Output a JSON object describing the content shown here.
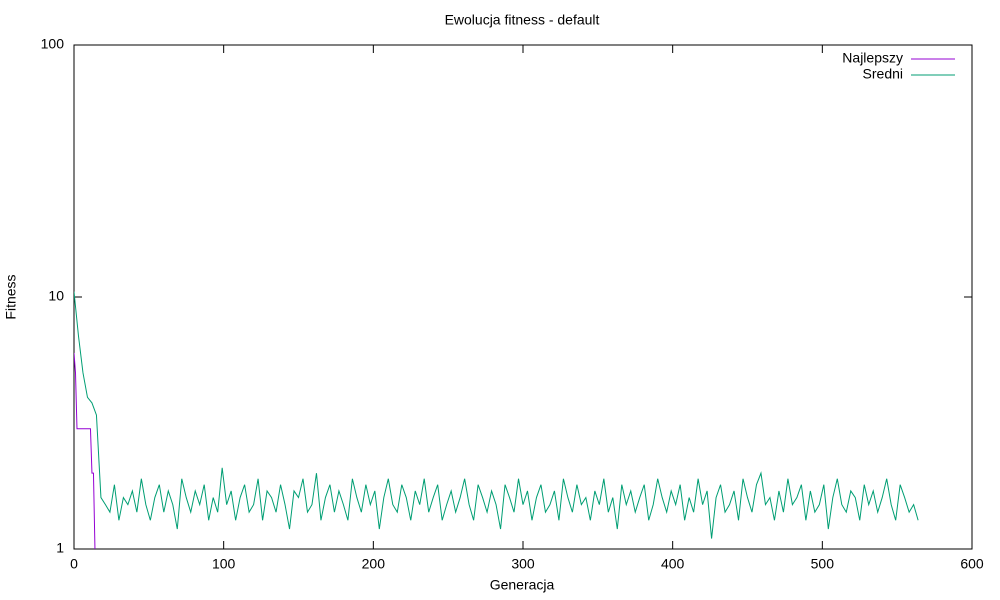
{
  "chart_data": {
    "type": "line",
    "title": "Ewolucja fitness - default",
    "x_label": "Generacja",
    "y_label": "Fitness",
    "xlim": [
      0,
      600
    ],
    "xticks": [
      0,
      100,
      200,
      300,
      400,
      500,
      600
    ],
    "ylim": [
      1,
      100
    ],
    "yticks": [
      1,
      10,
      100
    ],
    "y_scale": "log",
    "grid": false,
    "legend_position": "upper right",
    "series": [
      {
        "name": "Najlepszy",
        "color": "#9400d3",
        "x": [
          0,
          1,
          2,
          11,
          12,
          13,
          14
        ],
        "values": [
          6,
          5,
          3,
          3,
          2,
          2,
          1
        ]
      },
      {
        "name": "Sredni",
        "color": "#009e73",
        "x": [
          0,
          3,
          6,
          9,
          12,
          15,
          18,
          21,
          24,
          27,
          30,
          33,
          36,
          39,
          42,
          45,
          48,
          51,
          54,
          57,
          60,
          63,
          66,
          69,
          72,
          75,
          78,
          81,
          84,
          87,
          90,
          93,
          96,
          99,
          102,
          105,
          108,
          111,
          114,
          117,
          120,
          123,
          126,
          129,
          132,
          135,
          138,
          141,
          144,
          147,
          150,
          153,
          156,
          159,
          162,
          165,
          168,
          171,
          174,
          177,
          180,
          183,
          186,
          189,
          192,
          195,
          198,
          201,
          204,
          207,
          210,
          213,
          216,
          219,
          222,
          225,
          228,
          231,
          234,
          237,
          240,
          243,
          246,
          249,
          252,
          255,
          258,
          261,
          264,
          267,
          270,
          273,
          276,
          279,
          282,
          285,
          288,
          291,
          294,
          297,
          300,
          303,
          306,
          309,
          312,
          315,
          318,
          321,
          324,
          327,
          330,
          333,
          336,
          339,
          342,
          345,
          348,
          351,
          354,
          357,
          360,
          363,
          366,
          369,
          372,
          375,
          378,
          381,
          384,
          387,
          390,
          393,
          396,
          399,
          402,
          405,
          408,
          411,
          414,
          417,
          420,
          423,
          426,
          429,
          432,
          435,
          438,
          441,
          444,
          447,
          450,
          453,
          456,
          459,
          462,
          465,
          468,
          471,
          474,
          477,
          480,
          483,
          486,
          489,
          492,
          495,
          498,
          501,
          504,
          507,
          510,
          513,
          516,
          519,
          522,
          525,
          528,
          531,
          534,
          537,
          540,
          543,
          546,
          549,
          552,
          555,
          558,
          561,
          564
        ],
        "values": [
          10.5,
          7,
          5,
          4,
          3.8,
          3.4,
          1.6,
          1.5,
          1.4,
          1.8,
          1.3,
          1.6,
          1.5,
          1.7,
          1.4,
          1.9,
          1.5,
          1.3,
          1.6,
          1.8,
          1.4,
          1.7,
          1.5,
          1.2,
          1.9,
          1.6,
          1.4,
          1.7,
          1.5,
          1.8,
          1.3,
          1.6,
          1.4,
          2.1,
          1.5,
          1.7,
          1.3,
          1.6,
          1.8,
          1.4,
          1.5,
          1.9,
          1.3,
          1.7,
          1.6,
          1.4,
          1.8,
          1.5,
          1.2,
          1.7,
          1.6,
          1.9,
          1.4,
          1.5,
          2.0,
          1.3,
          1.6,
          1.8,
          1.4,
          1.7,
          1.5,
          1.3,
          1.9,
          1.6,
          1.4,
          1.8,
          1.5,
          1.7,
          1.2,
          1.6,
          1.9,
          1.5,
          1.4,
          1.8,
          1.6,
          1.3,
          1.7,
          1.5,
          1.9,
          1.4,
          1.6,
          1.8,
          1.3,
          1.5,
          1.7,
          1.4,
          1.6,
          1.9,
          1.5,
          1.3,
          1.8,
          1.6,
          1.4,
          1.7,
          1.5,
          1.2,
          1.8,
          1.6,
          1.4,
          1.9,
          1.5,
          1.7,
          1.3,
          1.6,
          1.8,
          1.4,
          1.5,
          1.7,
          1.3,
          1.9,
          1.6,
          1.4,
          1.8,
          1.5,
          1.6,
          1.3,
          1.7,
          1.5,
          1.9,
          1.4,
          1.6,
          1.2,
          1.8,
          1.5,
          1.7,
          1.4,
          1.6,
          1.8,
          1.3,
          1.5,
          1.9,
          1.6,
          1.4,
          1.7,
          1.5,
          1.8,
          1.3,
          1.6,
          1.4,
          1.9,
          1.5,
          1.7,
          1.1,
          1.6,
          1.8,
          1.4,
          1.5,
          1.7,
          1.3,
          1.9,
          1.6,
          1.4,
          1.8,
          2.0,
          1.5,
          1.6,
          1.3,
          1.7,
          1.4,
          1.9,
          1.5,
          1.6,
          1.8,
          1.3,
          1.7,
          1.4,
          1.5,
          1.8,
          1.2,
          1.6,
          1.9,
          1.5,
          1.4,
          1.7,
          1.6,
          1.3,
          1.8,
          1.5,
          1.7,
          1.4,
          1.6,
          1.9,
          1.5,
          1.3,
          1.8,
          1.6,
          1.4,
          1.5,
          1.3
        ]
      }
    ]
  }
}
